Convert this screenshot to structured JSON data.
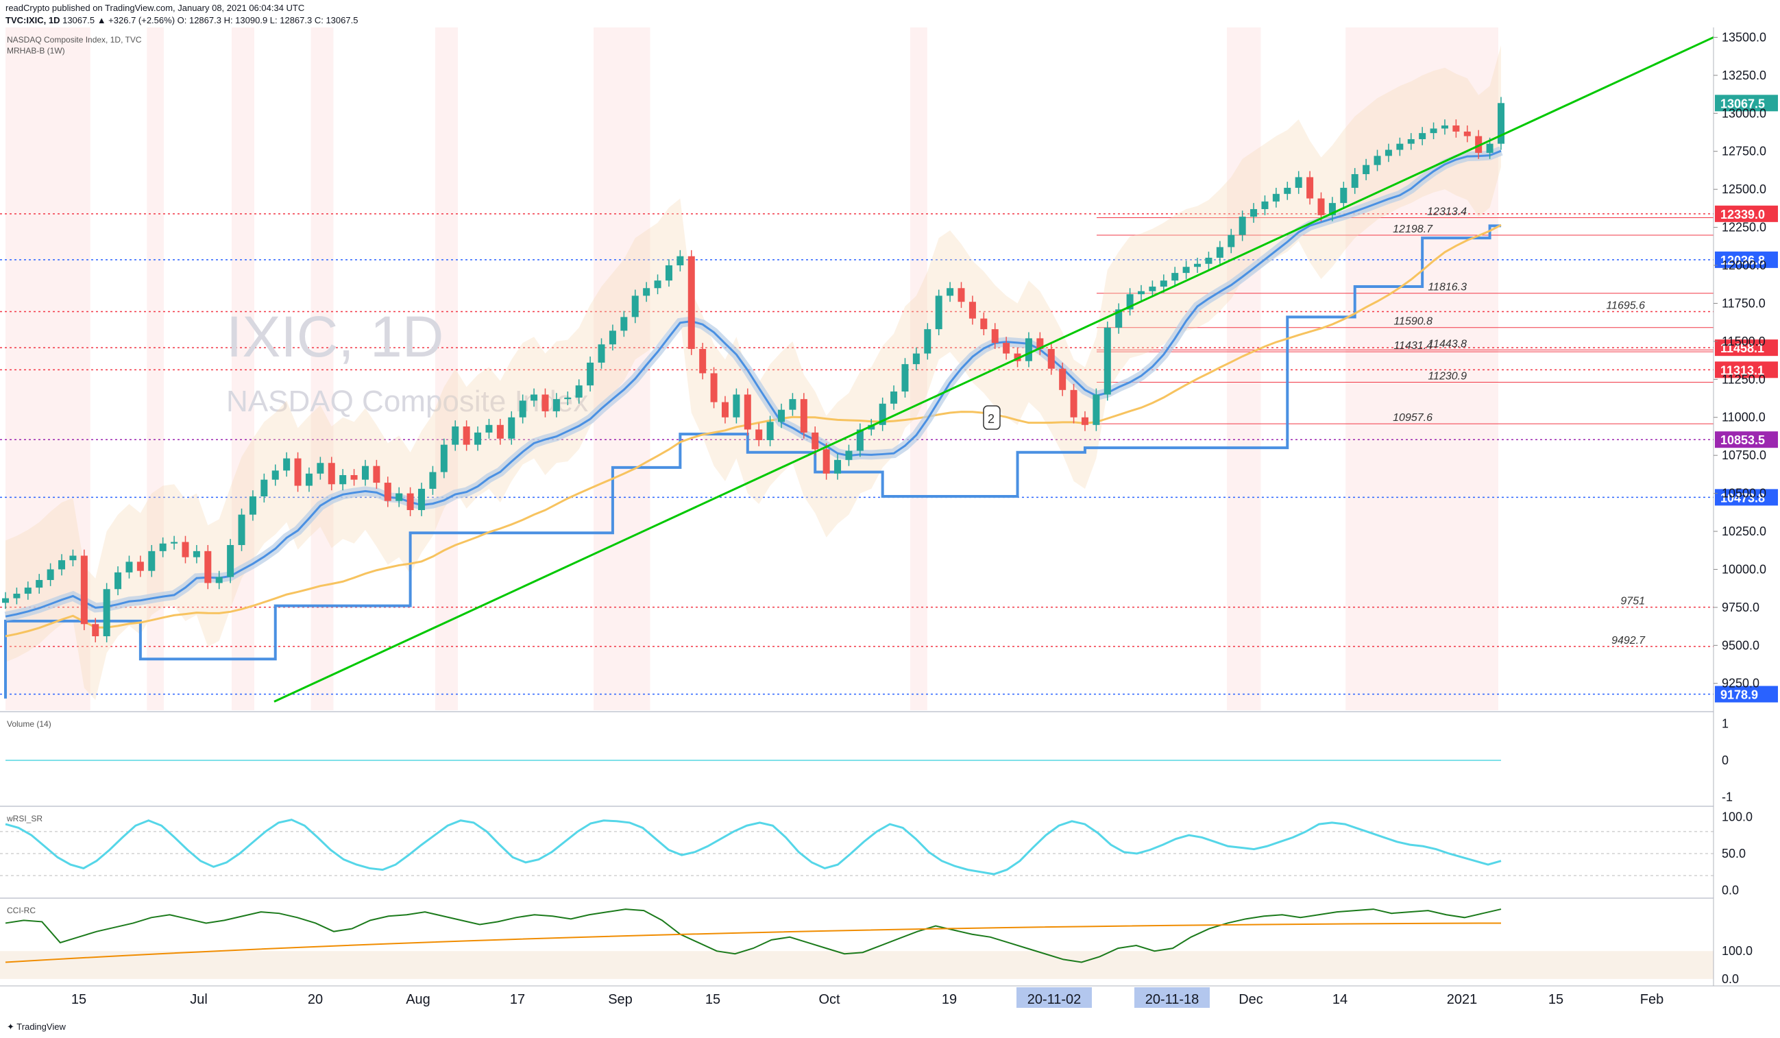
{
  "header": {
    "publisher_line": "readCrypto published on TradingView.com, January 08, 2021 06:04:34 UTC",
    "symbol": "TVC:IXIC, 1D",
    "quote": "13067.5 ▲ +326.7 (+2.56%) O: 12867.3 H: 13090.9 L: 12867.3 C: 13067.5"
  },
  "panes": {
    "main": {
      "title": "NASDAQ Composite Index, 1D, TVC",
      "indicator": "MRHAB-B (1W)",
      "watermark_symbol": "IXIC, 1D",
      "watermark_name": "NASDAQ Composite Index"
    },
    "volume": {
      "title": "Volume (14)"
    },
    "wrsi": {
      "title": "wRSI_SR"
    },
    "cci": {
      "title": "CCI-RC"
    }
  },
  "footer": {
    "brand": "TradingView"
  },
  "chart_data": [
    {
      "type": "candlestick",
      "title": "NASDAQ Composite Index, 1D, TVC",
      "x_tick_labels": [
        "15",
        "Jul",
        "20",
        "Aug",
        "17",
        "Sep",
        "15",
        "Oct",
        "19",
        "20-11-02",
        "20-11-18",
        "Dec",
        "14",
        "2021",
        "15",
        "Feb"
      ],
      "y_tick_labels": [
        "9250.0",
        "9500.0",
        "9750.0",
        "10000.0",
        "10250.0",
        "10500.0",
        "10750.0",
        "11000.0",
        "11250.0",
        "11500.0",
        "11750.0",
        "12000.0",
        "12250.0",
        "12500.0",
        "12750.0",
        "13000.0",
        "13250.0",
        "13500.0"
      ],
      "ylim": [
        9100,
        13520
      ],
      "last_close": 13067.5,
      "highlighted_dates": [
        "20-11-02",
        "20-11-18"
      ],
      "close_path": [
        9810,
        9840,
        9880,
        9930,
        10000,
        10060,
        10090,
        9640,
        9560,
        9870,
        9980,
        10050,
        9990,
        10120,
        10170,
        10180,
        10080,
        10120,
        9910,
        9950,
        10160,
        10360,
        10480,
        10590,
        10650,
        10730,
        10550,
        10630,
        10700,
        10560,
        10620,
        10590,
        10680,
        10570,
        10450,
        10500,
        10390,
        10530,
        10640,
        10820,
        10940,
        10820,
        10900,
        10950,
        10860,
        11000,
        11110,
        11150,
        11040,
        11120,
        11130,
        11210,
        11360,
        11480,
        11570,
        11660,
        11800,
        11850,
        11900,
        12000,
        12060,
        11450,
        11290,
        11100,
        11000,
        11150,
        10920,
        10850,
        10970,
        11050,
        11120,
        10900,
        10790,
        10630,
        10720,
        10780,
        10920,
        10950,
        11090,
        11170,
        11350,
        11420,
        11580,
        11800,
        11850,
        11760,
        11650,
        11580,
        11490,
        11420,
        11370,
        11520,
        11450,
        11320,
        11180,
        11000,
        10950,
        11150,
        11590,
        11710,
        11810,
        11830,
        11860,
        11900,
        11950,
        11990,
        12010,
        12050,
        12120,
        12200,
        12320,
        12370,
        12420,
        12470,
        12510,
        12580,
        12440,
        12330,
        12410,
        12510,
        12600,
        12660,
        12720,
        12760,
        12800,
        12830,
        12870,
        12900,
        12920,
        12880,
        12850,
        12740,
        12800,
        13067.5
      ],
      "horizontal_levels": [
        {
          "value": 12339.0,
          "label": "12339.0",
          "color": "#f23645",
          "badge": true
        },
        {
          "value": 12036.8,
          "label": "12036.8",
          "color": "#2962ff",
          "badge": true
        },
        {
          "value": 11458.1,
          "label": "11458.1",
          "color": "#f23645",
          "badge": true
        },
        {
          "value": 11313.1,
          "label": "11313.1",
          "color": "#f23645",
          "badge": true
        },
        {
          "value": 10853.5,
          "label": "10853.5",
          "color": "#9c27b0",
          "badge": true
        },
        {
          "value": 10473.8,
          "label": "10473.8",
          "color": "#2962ff",
          "badge": true
        },
        {
          "value": 9178.9,
          "label": "9178.9",
          "color": "#2962ff",
          "badge": true
        },
        {
          "value": 11695.6,
          "label": "11695.6",
          "color": "#f23645",
          "badge": false
        },
        {
          "value": 9751,
          "label": "9751",
          "color": "#f23645",
          "badge": false
        },
        {
          "value": 9492.7,
          "label": "9492.7",
          "color": "#f23645",
          "badge": false
        }
      ],
      "level_annotations": [
        "12313.4",
        "12198.7",
        "11816.3",
        "11590.8",
        "11443.8",
        "11431.4",
        "11230.9",
        "10957.6"
      ],
      "annotation_marker": "2",
      "colors": {
        "up": "#26a69a",
        "down": "#ef5350",
        "trendline": "#00c800",
        "ma": "#f7c35f",
        "stepline": "#4a90e2",
        "last_badge": "#26a69a"
      }
    },
    {
      "type": "line",
      "title": "Volume (14)",
      "y_tick_labels": [
        "1",
        "0",
        "-1"
      ],
      "ylim": [
        -1.1,
        1.1
      ],
      "values": [
        0,
        0
      ]
    },
    {
      "type": "line",
      "title": "wRSI_SR",
      "y_tick_labels": [
        "100.0",
        "50.0",
        "0.0"
      ],
      "ylim": [
        -5,
        105
      ],
      "values": [
        90,
        85,
        75,
        60,
        45,
        35,
        30,
        40,
        55,
        72,
        88,
        95,
        88,
        72,
        55,
        40,
        32,
        38,
        50,
        65,
        80,
        92,
        96,
        88,
        72,
        55,
        42,
        35,
        30,
        28,
        35,
        48,
        62,
        75,
        88,
        95,
        92,
        80,
        62,
        45,
        38,
        42,
        52,
        66,
        80,
        91,
        95,
        94,
        92,
        85,
        70,
        55,
        48,
        52,
        60,
        70,
        80,
        88,
        92,
        88,
        72,
        52,
        38,
        30,
        35,
        50,
        66,
        80,
        90,
        85,
        70,
        52,
        40,
        33,
        28,
        25,
        22,
        28,
        40,
        58,
        75,
        88,
        94,
        90,
        78,
        62,
        52,
        50,
        55,
        62,
        70,
        75,
        72,
        66,
        60,
        58,
        56,
        60,
        66,
        72,
        80,
        90,
        92,
        90,
        84,
        78,
        72,
        66,
        62,
        60,
        56,
        50,
        45,
        40,
        35,
        40
      ]
    },
    {
      "type": "line",
      "title": "CCI-RC",
      "y_tick_labels": [
        "100.0",
        "0.0"
      ],
      "ylim": [
        -10,
        260
      ],
      "values": [
        200,
        210,
        205,
        130,
        150,
        170,
        185,
        200,
        220,
        230,
        215,
        200,
        210,
        225,
        240,
        235,
        220,
        200,
        170,
        180,
        210,
        225,
        230,
        240,
        225,
        210,
        195,
        205,
        220,
        230,
        225,
        215,
        230,
        240,
        250,
        245,
        210,
        160,
        130,
        100,
        90,
        110,
        140,
        150,
        130,
        110,
        90,
        95,
        120,
        145,
        170,
        190,
        175,
        160,
        150,
        130,
        110,
        90,
        70,
        60,
        80,
        110,
        120,
        100,
        110,
        150,
        180,
        200,
        215,
        225,
        230,
        220,
        230,
        240,
        245,
        250,
        235,
        240,
        245,
        230,
        220,
        235,
        250
      ]
    }
  ]
}
